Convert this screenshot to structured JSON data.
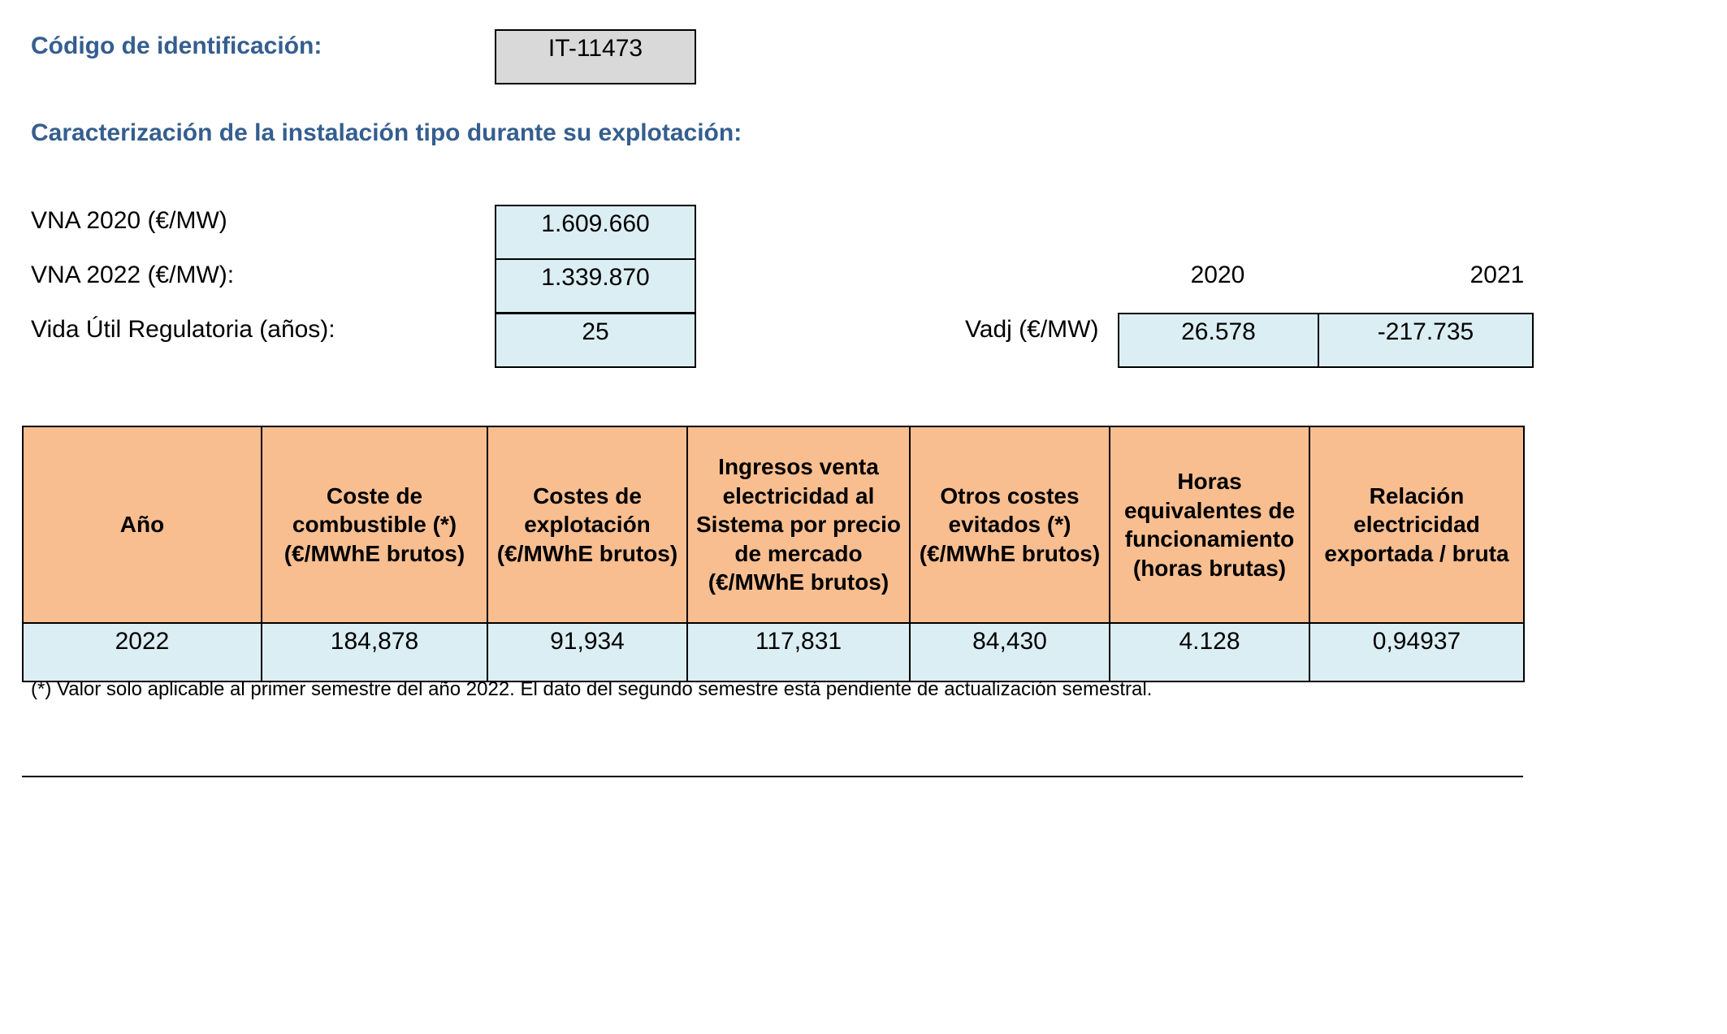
{
  "header": {
    "code_label": "Código de identificación:",
    "code_value": "IT-11473",
    "section_title": "Caracterización de la instalación tipo durante su explotación:"
  },
  "params": {
    "vna2020_label": "VNA 2020 (€/MW)",
    "vna2020_value": "1.609.660",
    "vna2022_label": "VNA 2022 (€/MW):",
    "vna2022_value": "1.339.870",
    "vida_label": "Vida Útil Regulatoria (años):",
    "vida_value": "25"
  },
  "vadj": {
    "label": "Vadj (€/MW)",
    "years": [
      "2020",
      "2021"
    ],
    "values": [
      "26.578",
      "-217.735"
    ]
  },
  "table": {
    "headers": [
      "Año",
      "Coste de combustible (*) (€/MWhE brutos)",
      "Costes de explotación (€/MWhE brutos)",
      "Ingresos venta electricidad al Sistema por precio de mercado (€/MWhE brutos)",
      "Otros costes evitados (*) (€/MWhE brutos)",
      "Horas equivalentes de funcionamiento (horas brutas)",
      "Relación electricidad exportada / bruta"
    ],
    "rows": [
      [
        "2022",
        "184,878",
        "91,934",
        "117,831",
        "84,430",
        "4.128",
        "0,94937"
      ]
    ]
  },
  "footnote": "(*) Valor solo aplicable al primer semestre del año 2022. El dato del segundo semestre está pendiente de actualización semestral."
}
